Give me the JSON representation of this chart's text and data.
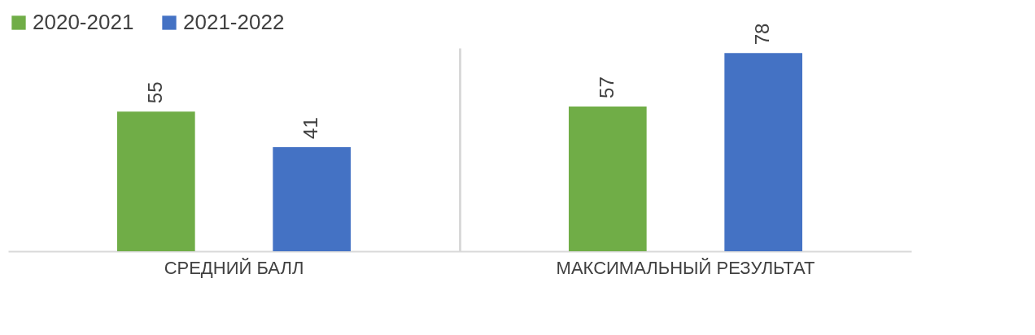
{
  "chart_data": {
    "type": "bar",
    "categories": [
      "СРЕДНИЙ БАЛЛ",
      "МАКСИМАЛЬНЫЙ РЕЗУЛЬТАТ"
    ],
    "series": [
      {
        "name": "2020-2021",
        "color": "#70ad47",
        "values": [
          55,
          57
        ]
      },
      {
        "name": "2021-2022",
        "color": "#4472c4",
        "values": [
          41,
          78
        ]
      }
    ],
    "data_labels": true,
    "legend": "top",
    "grid": "x"
  }
}
